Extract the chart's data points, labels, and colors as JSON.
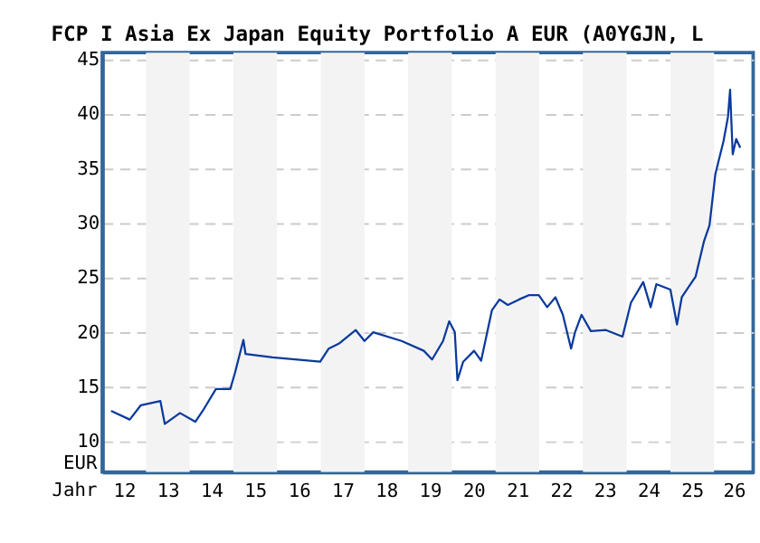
{
  "chart_data": {
    "type": "line",
    "title": "FCP I Asia Ex Japan Equity Portfolio A EUR (A0YGJN, L",
    "xlabel": "Jahr",
    "ylabel": "EUR",
    "x": [
      "2012-03-15",
      "2012-08-18",
      "2012-11-17",
      "2013-05-01",
      "2013-06-07",
      "2013-10-12",
      "2014-02-17",
      "2014-04-20",
      "2014-08-08",
      "2014-12-06",
      "2015-01-15",
      "2015-03-26",
      "2015-04-13",
      "2015-11-24",
      "2016-12-27",
      "2017-03-08",
      "2017-06-07",
      "2017-10-20",
      "2018-01-01",
      "2018-03-15",
      "2018-11-07",
      "2019-05-12",
      "2019-07-20",
      "2019-10-20",
      "2019-12-10",
      "2020-01-26",
      "2020-02-17",
      "2020-04-05",
      "2020-07-05",
      "2020-09-02",
      "2020-12-01",
      "2021-02-03",
      "2021-04-13",
      "2021-07-16",
      "2021-10-09",
      "2021-12-28",
      "2022-03-08",
      "2022-05-16",
      "2022-07-17",
      "2022-09-24",
      "2022-10-27",
      "2022-12-20",
      "2023-03-08",
      "2023-07-13",
      "2023-11-28",
      "2024-02-06",
      "2024-05-19",
      "2024-07-20",
      "2024-09-06",
      "2025-01-01",
      "2025-02-25",
      "2025-04-06",
      "2025-07-31",
      "2025-10-08",
      "2025-11-24",
      "2026-01-12",
      "2026-03-21",
      "2026-04-27",
      "2026-05-15",
      "2026-06-06",
      "2026-07-05",
      "2026-08-08"
    ],
    "series": [
      {
        "color": "#0a3a9c",
        "values": [
          12.8,
          12.0,
          13.3,
          13.7,
          11.6,
          12.6,
          11.8,
          12.8,
          14.8,
          14.8,
          16.3,
          19.3,
          18.0,
          17.7,
          17.3,
          18.5,
          19.0,
          20.2,
          19.2,
          20.0,
          19.2,
          18.3,
          17.5,
          19.2,
          21.0,
          20.0,
          15.6,
          17.3,
          18.3,
          17.4,
          22.0,
          23.0,
          22.5,
          23.0,
          23.4,
          23.4,
          22.3,
          23.2,
          21.6,
          18.5,
          20.0,
          21.6,
          20.1,
          20.2,
          19.6,
          22.7,
          24.6,
          22.3,
          24.4,
          23.9,
          20.7,
          23.2,
          25.1,
          28.3,
          29.8,
          34.5,
          37.5,
          39.7,
          42.2,
          36.3,
          37.7,
          36.9
        ]
      }
    ],
    "xlim": [
      "2012-01-01",
      "2026-11-24"
    ],
    "xticks": [
      {
        "value": "2012-07-01",
        "label": "12"
      },
      {
        "value": "2013-07-01",
        "label": "13"
      },
      {
        "value": "2014-07-01",
        "label": "14"
      },
      {
        "value": "2015-07-01",
        "label": "15"
      },
      {
        "value": "2016-07-01",
        "label": "16"
      },
      {
        "value": "2017-07-01",
        "label": "17"
      },
      {
        "value": "2018-07-01",
        "label": "18"
      },
      {
        "value": "2019-07-01",
        "label": "19"
      },
      {
        "value": "2020-07-01",
        "label": "20"
      },
      {
        "value": "2021-07-01",
        "label": "21"
      },
      {
        "value": "2022-07-01",
        "label": "22"
      },
      {
        "value": "2023-07-01",
        "label": "23"
      },
      {
        "value": "2024-07-01",
        "label": "24"
      },
      {
        "value": "2025-07-01",
        "label": "25"
      },
      {
        "value": "2026-06-15",
        "label": "26"
      }
    ],
    "ylim": [
      7.2,
      45.6
    ],
    "yticks": [
      10,
      15,
      20,
      25,
      30,
      35,
      40,
      45
    ],
    "grid": "y",
    "line_style": "solid",
    "bands": [
      {
        "axis": "x",
        "from": "2013-01-01",
        "to": "2014-01-01",
        "color": "#f3f3f3"
      },
      {
        "axis": "x",
        "from": "2015-01-01",
        "to": "2016-01-01",
        "color": "#f3f3f3"
      },
      {
        "axis": "x",
        "from": "2017-01-01",
        "to": "2018-01-01",
        "color": "#f3f3f3"
      },
      {
        "axis": "x",
        "from": "2019-01-01",
        "to": "2020-01-01",
        "color": "#f3f3f3"
      },
      {
        "axis": "x",
        "from": "2021-01-01",
        "to": "2022-01-01",
        "color": "#f3f3f3"
      },
      {
        "axis": "x",
        "from": "2023-01-01",
        "to": "2024-01-01",
        "color": "#f3f3f3"
      },
      {
        "axis": "x",
        "from": "2025-01-01",
        "to": "2026-01-01",
        "color": "#f3f3f3"
      }
    ]
  }
}
